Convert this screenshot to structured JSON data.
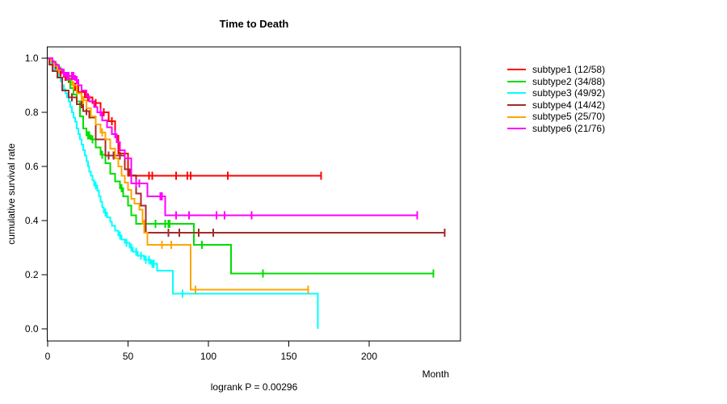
{
  "title": "Time to Death",
  "footer": "logrank P = 0.00296",
  "chart_data": {
    "type": "line",
    "subtype": "kaplan-meier-step",
    "title": "Time to Death",
    "xlabel": "Month",
    "ylabel": "cumulative survival rate",
    "annotation": "logrank P = 0.00296",
    "xlim": [
      0,
      257
    ],
    "ylim": [
      0.0,
      1.0
    ],
    "xticks": [
      0,
      50,
      100,
      150,
      200
    ],
    "ytick_labels": [
      "0.0",
      "0.2",
      "0.4",
      "0.6",
      "0.8",
      "1.0"
    ],
    "yticks": [
      0.0,
      0.2,
      0.4,
      0.6,
      0.8,
      1.0
    ],
    "grid": false,
    "legend_position": "right",
    "axis_color": "#000000",
    "series": [
      {
        "name": "subtype1",
        "label": "subtype1 (12/58)",
        "color": "#FF0000",
        "end_month": 170,
        "steps": [
          [
            0,
            1.0
          ],
          [
            2,
            0.983
          ],
          [
            4,
            0.966
          ],
          [
            7,
            0.948
          ],
          [
            10,
            0.931
          ],
          [
            13,
            0.912
          ],
          [
            16,
            0.894
          ],
          [
            19,
            0.875
          ],
          [
            23,
            0.855
          ],
          [
            28,
            0.835
          ],
          [
            33,
            0.8
          ],
          [
            38,
            0.767
          ],
          [
            42,
            0.713
          ],
          [
            44,
            0.648
          ],
          [
            50,
            0.565
          ]
        ],
        "censor_months": [
          3,
          5,
          6,
          8,
          11,
          14,
          17,
          21,
          25,
          30,
          35,
          40,
          63,
          65,
          80,
          87,
          89,
          112,
          170
        ]
      },
      {
        "name": "subtype2",
        "label": "subtype2 (34/88)",
        "color": "#00DD00",
        "end_month": 240,
        "steps": [
          [
            0,
            1.0
          ],
          [
            2,
            0.989
          ],
          [
            4,
            0.977
          ],
          [
            6,
            0.966
          ],
          [
            8,
            0.955
          ],
          [
            10,
            0.94
          ],
          [
            12,
            0.92
          ],
          [
            14,
            0.89
          ],
          [
            16,
            0.865
          ],
          [
            18,
            0.84
          ],
          [
            20,
            0.785
          ],
          [
            22,
            0.74
          ],
          [
            24,
            0.715
          ],
          [
            27,
            0.7
          ],
          [
            30,
            0.67
          ],
          [
            33,
            0.643
          ],
          [
            36,
            0.612
          ],
          [
            39,
            0.573
          ],
          [
            42,
            0.545
          ],
          [
            45,
            0.52
          ],
          [
            47,
            0.49
          ],
          [
            50,
            0.455
          ],
          [
            52,
            0.42
          ],
          [
            55,
            0.388
          ],
          [
            91,
            0.31
          ],
          [
            114,
            0.205
          ]
        ],
        "censor_months": [
          25,
          26,
          28,
          34,
          46,
          67,
          73,
          75,
          76,
          96,
          134,
          240
        ]
      },
      {
        "name": "subtype3",
        "label": "subtype3 (49/92)",
        "color": "#00FFFF",
        "end_month": 168,
        "steps": [
          [
            0,
            1.0
          ],
          [
            1,
            0.989
          ],
          [
            2,
            0.978
          ],
          [
            3,
            0.967
          ],
          [
            4,
            0.956
          ],
          [
            6,
            0.944
          ],
          [
            7,
            0.93
          ],
          [
            8,
            0.915
          ],
          [
            9,
            0.9
          ],
          [
            10,
            0.885
          ],
          [
            11,
            0.87
          ],
          [
            12,
            0.855
          ],
          [
            13,
            0.84
          ],
          [
            14,
            0.82
          ],
          [
            15,
            0.8
          ],
          [
            16,
            0.78
          ],
          [
            17,
            0.765
          ],
          [
            18,
            0.74
          ],
          [
            19,
            0.72
          ],
          [
            20,
            0.7
          ],
          [
            21,
            0.68
          ],
          [
            22,
            0.66
          ],
          [
            23,
            0.64
          ],
          [
            24,
            0.62
          ],
          [
            25,
            0.6
          ],
          [
            26,
            0.58
          ],
          [
            27,
            0.565
          ],
          [
            28,
            0.55
          ],
          [
            29,
            0.53
          ],
          [
            31,
            0.51
          ],
          [
            32,
            0.49
          ],
          [
            33,
            0.47
          ],
          [
            34,
            0.45
          ],
          [
            35,
            0.43
          ],
          [
            37,
            0.412
          ],
          [
            39,
            0.396
          ],
          [
            40,
            0.38
          ],
          [
            42,
            0.362
          ],
          [
            44,
            0.345
          ],
          [
            46,
            0.33
          ],
          [
            48,
            0.318
          ],
          [
            51,
            0.3
          ],
          [
            53,
            0.285
          ],
          [
            56,
            0.27
          ],
          [
            60,
            0.255
          ],
          [
            64,
            0.24
          ],
          [
            68,
            0.215
          ],
          [
            78,
            0.13
          ],
          [
            168,
            0.0
          ]
        ],
        "censor_months": [
          30,
          36,
          45,
          49,
          52,
          55,
          58,
          61,
          63,
          65,
          66,
          84
        ]
      },
      {
        "name": "subtype4",
        "label": "subtype4 (14/42)",
        "color": "#A52A2A",
        "end_month": 247,
        "steps": [
          [
            0,
            1.0
          ],
          [
            1,
            0.976
          ],
          [
            3,
            0.952
          ],
          [
            6,
            0.929
          ],
          [
            9,
            0.88
          ],
          [
            13,
            0.855
          ],
          [
            18,
            0.83
          ],
          [
            22,
            0.805
          ],
          [
            26,
            0.78
          ],
          [
            30,
            0.7
          ],
          [
            36,
            0.64
          ],
          [
            48,
            0.59
          ],
          [
            51,
            0.567
          ],
          [
            55,
            0.5
          ],
          [
            58,
            0.455
          ],
          [
            61,
            0.355
          ]
        ],
        "censor_months": [
          15,
          21,
          24,
          38,
          41,
          45,
          75,
          82,
          94,
          103,
          247
        ]
      },
      {
        "name": "subtype5",
        "label": "subtype5 (25/70)",
        "color": "#FFA500",
        "end_month": 162,
        "steps": [
          [
            0,
            1.0
          ],
          [
            2,
            0.986
          ],
          [
            4,
            0.971
          ],
          [
            6,
            0.957
          ],
          [
            9,
            0.943
          ],
          [
            12,
            0.928
          ],
          [
            15,
            0.9
          ],
          [
            18,
            0.87
          ],
          [
            21,
            0.845
          ],
          [
            24,
            0.815
          ],
          [
            27,
            0.785
          ],
          [
            30,
            0.755
          ],
          [
            33,
            0.725
          ],
          [
            36,
            0.7
          ],
          [
            39,
            0.665
          ],
          [
            42,
            0.63
          ],
          [
            44,
            0.6
          ],
          [
            46,
            0.565
          ],
          [
            48,
            0.54
          ],
          [
            50,
            0.513
          ],
          [
            52,
            0.48
          ],
          [
            54,
            0.463
          ],
          [
            57,
            0.44
          ],
          [
            59,
            0.4
          ],
          [
            60,
            0.355
          ],
          [
            62,
            0.31
          ],
          [
            89,
            0.145
          ]
        ],
        "censor_months": [
          7,
          16,
          22,
          34,
          59,
          71,
          77,
          92,
          162
        ]
      },
      {
        "name": "subtype6",
        "label": "subtype6 (21/76)",
        "color": "#FF00FF",
        "end_month": 230,
        "steps": [
          [
            0,
            1.0
          ],
          [
            3,
            0.987
          ],
          [
            5,
            0.974
          ],
          [
            7,
            0.96
          ],
          [
            9,
            0.947
          ],
          [
            11,
            0.934
          ],
          [
            17,
            0.92
          ],
          [
            19,
            0.9
          ],
          [
            21,
            0.88
          ],
          [
            24,
            0.86
          ],
          [
            26,
            0.84
          ],
          [
            29,
            0.82
          ],
          [
            31,
            0.8
          ],
          [
            34,
            0.77
          ],
          [
            37,
            0.745
          ],
          [
            40,
            0.72
          ],
          [
            43,
            0.69
          ],
          [
            45,
            0.66
          ],
          [
            48,
            0.63
          ],
          [
            52,
            0.538
          ],
          [
            62,
            0.49
          ],
          [
            73,
            0.42
          ]
        ],
        "censor_months": [
          10,
          12,
          13,
          15,
          16,
          18,
          33,
          42,
          55,
          57,
          70,
          71,
          80,
          88,
          105,
          110,
          127,
          230
        ]
      }
    ]
  }
}
